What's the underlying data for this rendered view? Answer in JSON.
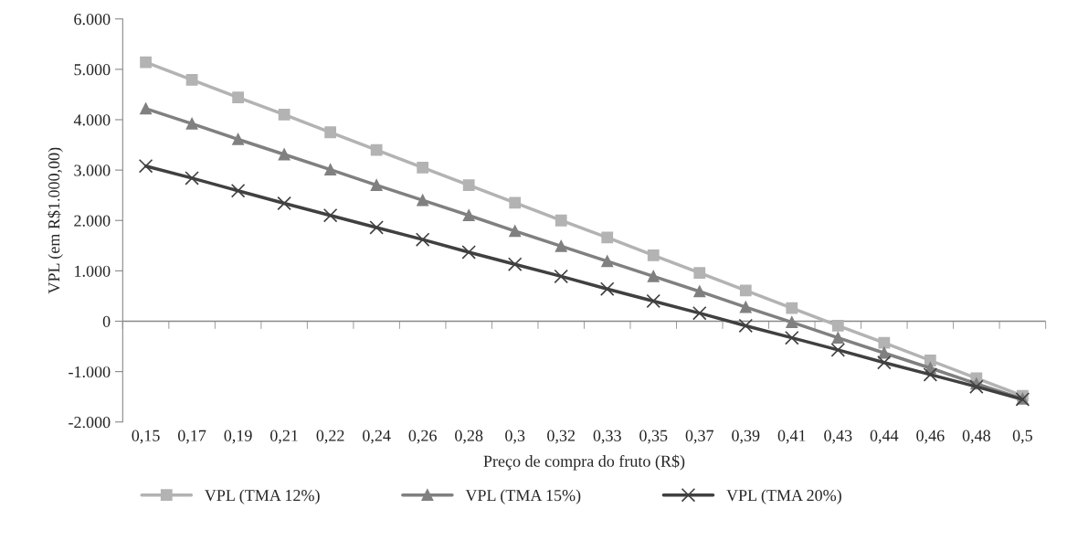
{
  "chart_data": {
    "type": "line",
    "xlabel": "Preço de compra do fruto (R$)",
    "ylabel": "VPL (em R$1.000,00)",
    "categories": [
      "0,15",
      "0,17",
      "0,19",
      "0,21",
      "0,22",
      "0,24",
      "0,26",
      "0,28",
      "0,3",
      "0,32",
      "0,33",
      "0,35",
      "0,37",
      "0,39",
      "0,41",
      "0,43",
      "0,44",
      "0,46",
      "0,48",
      "0,5"
    ],
    "series": [
      {
        "name": "VPL (TMA 12%)",
        "color": "#b3b3b3",
        "marker": "square",
        "values": [
          5140,
          4790,
          4440,
          4100,
          3750,
          3400,
          3050,
          2700,
          2350,
          2000,
          1660,
          1310,
          960,
          610,
          260,
          -90,
          -430,
          -780,
          -1130,
          -1480
        ]
      },
      {
        "name": "VPL (TMA 15%)",
        "color": "#808080",
        "marker": "triangle",
        "values": [
          4220,
          3920,
          3610,
          3310,
          3010,
          2700,
          2400,
          2100,
          1790,
          1490,
          1190,
          890,
          590,
          280,
          -20,
          -330,
          -630,
          -930,
          -1240,
          -1540
        ]
      },
      {
        "name": "VPL (TMA 20%)",
        "color": "#404040",
        "marker": "cross",
        "values": [
          3080,
          2840,
          2590,
          2340,
          2100,
          1860,
          1620,
          1370,
          1130,
          890,
          640,
          400,
          160,
          -90,
          -330,
          -570,
          -820,
          -1060,
          -1300,
          -1550
        ]
      }
    ],
    "ylim": [
      -2000,
      6000
    ],
    "yticks": [
      {
        "value": -2000,
        "label": "-2.000"
      },
      {
        "value": -1000,
        "label": "-1.000"
      },
      0,
      {
        "value": 1000,
        "label": "1.000"
      },
      {
        "value": 2000,
        "label": "2.000"
      },
      {
        "value": 3000,
        "label": "3.000"
      },
      {
        "value": 4000,
        "label": "4.000"
      },
      {
        "value": 5000,
        "label": "5.000"
      },
      {
        "value": 6000,
        "label": "6.000"
      }
    ],
    "ref_lines": [
      {
        "axis": "y",
        "value": 0,
        "color": "#888888"
      }
    ],
    "grid": false,
    "legend": "bottom",
    "line_style": "solid"
  }
}
